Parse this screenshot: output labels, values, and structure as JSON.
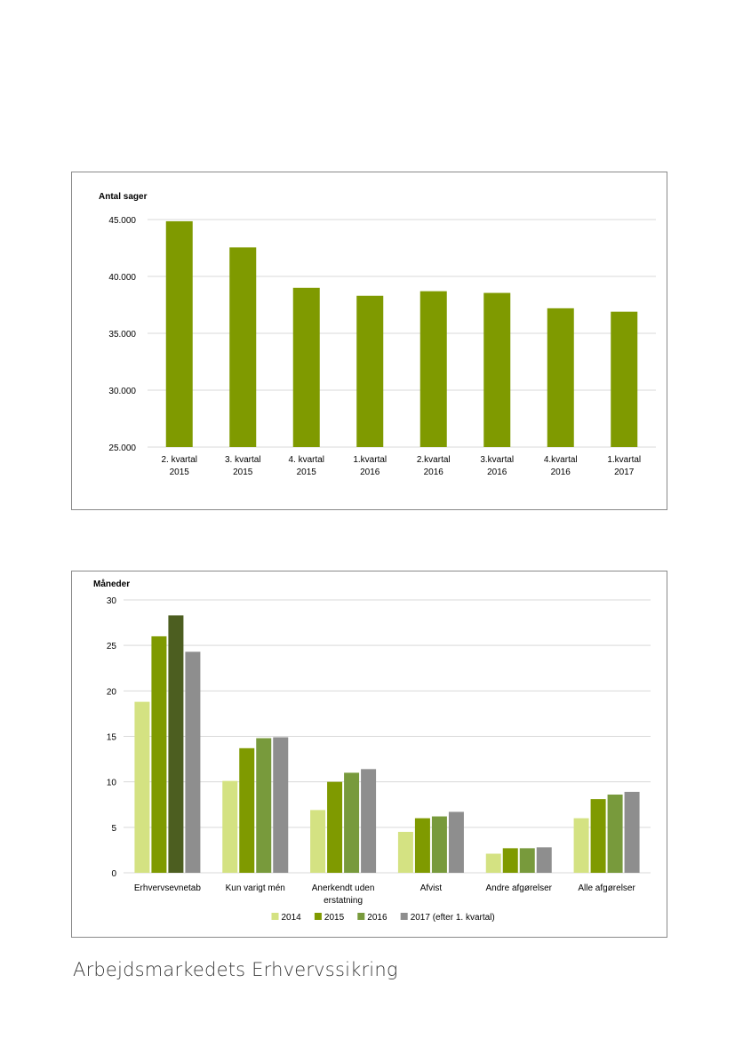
{
  "chart_data": [
    {
      "type": "bar",
      "ylabel": "Antal sager",
      "ylim": [
        25000,
        45000
      ],
      "yticks": [
        "25.000",
        "30.000",
        "35.000",
        "40.000",
        "45.000"
      ],
      "ytick_values": [
        25000,
        30000,
        35000,
        40000,
        45000
      ],
      "grid": true,
      "categories": [
        [
          "2. kvartal",
          "2015"
        ],
        [
          "3. kvartal",
          "2015"
        ],
        [
          "4. kvartal",
          "2015"
        ],
        [
          "1.kvartal",
          "2016"
        ],
        [
          "2.kvartal",
          "2016"
        ],
        [
          "3.kvartal",
          "2016"
        ],
        [
          "4.kvartal",
          "2016"
        ],
        [
          "1.kvartal",
          "2017"
        ]
      ],
      "values": [
        44850,
        42550,
        39000,
        38300,
        38700,
        38550,
        37200,
        36900
      ],
      "color": "#7f9a00"
    },
    {
      "type": "bar",
      "ylabel": "Måneder",
      "ylim": [
        0,
        30
      ],
      "yticks": [
        "0",
        "5",
        "10",
        "15",
        "20",
        "25",
        "30"
      ],
      "ytick_values": [
        0,
        5,
        10,
        15,
        20,
        25,
        30
      ],
      "grid": true,
      "legend_position": "bottom",
      "categories": [
        [
          "Erhvervsevnetab"
        ],
        [
          "Kun varigt mén"
        ],
        [
          "Anerkendt uden",
          "erstatning"
        ],
        [
          "Afvist"
        ],
        [
          "Andre afgørelser"
        ],
        [
          "Alle afgørelser"
        ]
      ],
      "series": [
        {
          "name": "2014",
          "color": "#d4e282",
          "values": [
            18.8,
            10.1,
            6.9,
            4.5,
            2.1,
            6.0
          ]
        },
        {
          "name": "2015",
          "color": "#7f9a00",
          "values": [
            26.0,
            13.7,
            10.0,
            6.0,
            2.7,
            8.1
          ]
        },
        {
          "name": "2016",
          "color": "#789a3c",
          "values": [
            28.3,
            14.8,
            11.0,
            6.2,
            2.7,
            8.6
          ]
        },
        {
          "name": "2017 (efter 1. kvartal)",
          "color": "#8e8e8e",
          "values": [
            24.3,
            14.9,
            11.4,
            6.7,
            2.8,
            8.9
          ]
        }
      ],
      "highlight": {
        "category_index": 0,
        "series_index": 2,
        "color": "#4c5e20"
      }
    }
  ],
  "footer": {
    "text": "Arbejdsmarkedets Erhvervssikring"
  }
}
